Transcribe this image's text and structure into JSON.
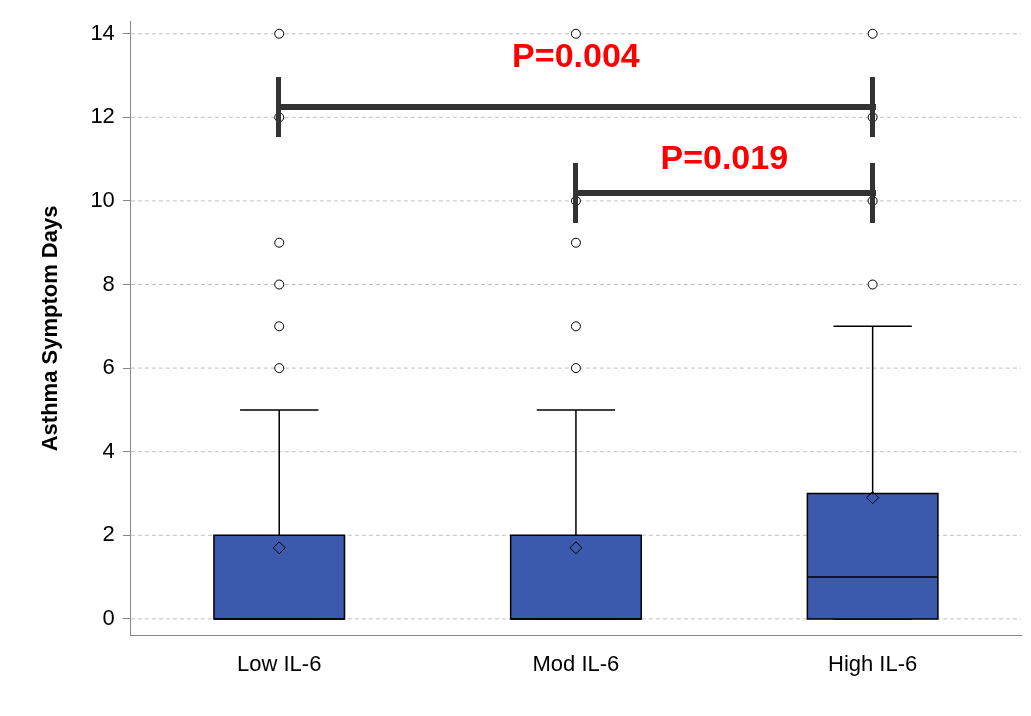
{
  "chart_data": {
    "type": "box",
    "ylabel": "Asthma Symptom Days",
    "categories": [
      "Low IL-6",
      "Mod IL-6",
      "High IL-6"
    ],
    "color": "#3c5aad",
    "boxes": [
      {
        "low": 0,
        "q1": 0,
        "median": 0,
        "q3": 2,
        "high": 5,
        "mean": 1.7,
        "outliers": [
          6,
          7,
          8,
          9,
          12,
          14
        ]
      },
      {
        "low": 0,
        "q1": 0,
        "median": 0,
        "q3": 2,
        "high": 5,
        "mean": 1.7,
        "outliers": [
          6,
          7,
          9,
          10,
          14
        ]
      },
      {
        "low": 0,
        "q1": 0,
        "median": 1,
        "q3": 3,
        "high": 7,
        "mean": 2.9,
        "outliers": [
          8,
          10,
          12,
          14
        ]
      }
    ],
    "ylim": [
      -0.4,
      14.3
    ],
    "yticks": [
      0,
      2,
      4,
      6,
      8,
      10,
      12,
      14
    ],
    "grid": "y",
    "legend": false,
    "annotations": [
      "P=0.004",
      "P=0.019"
    ]
  }
}
